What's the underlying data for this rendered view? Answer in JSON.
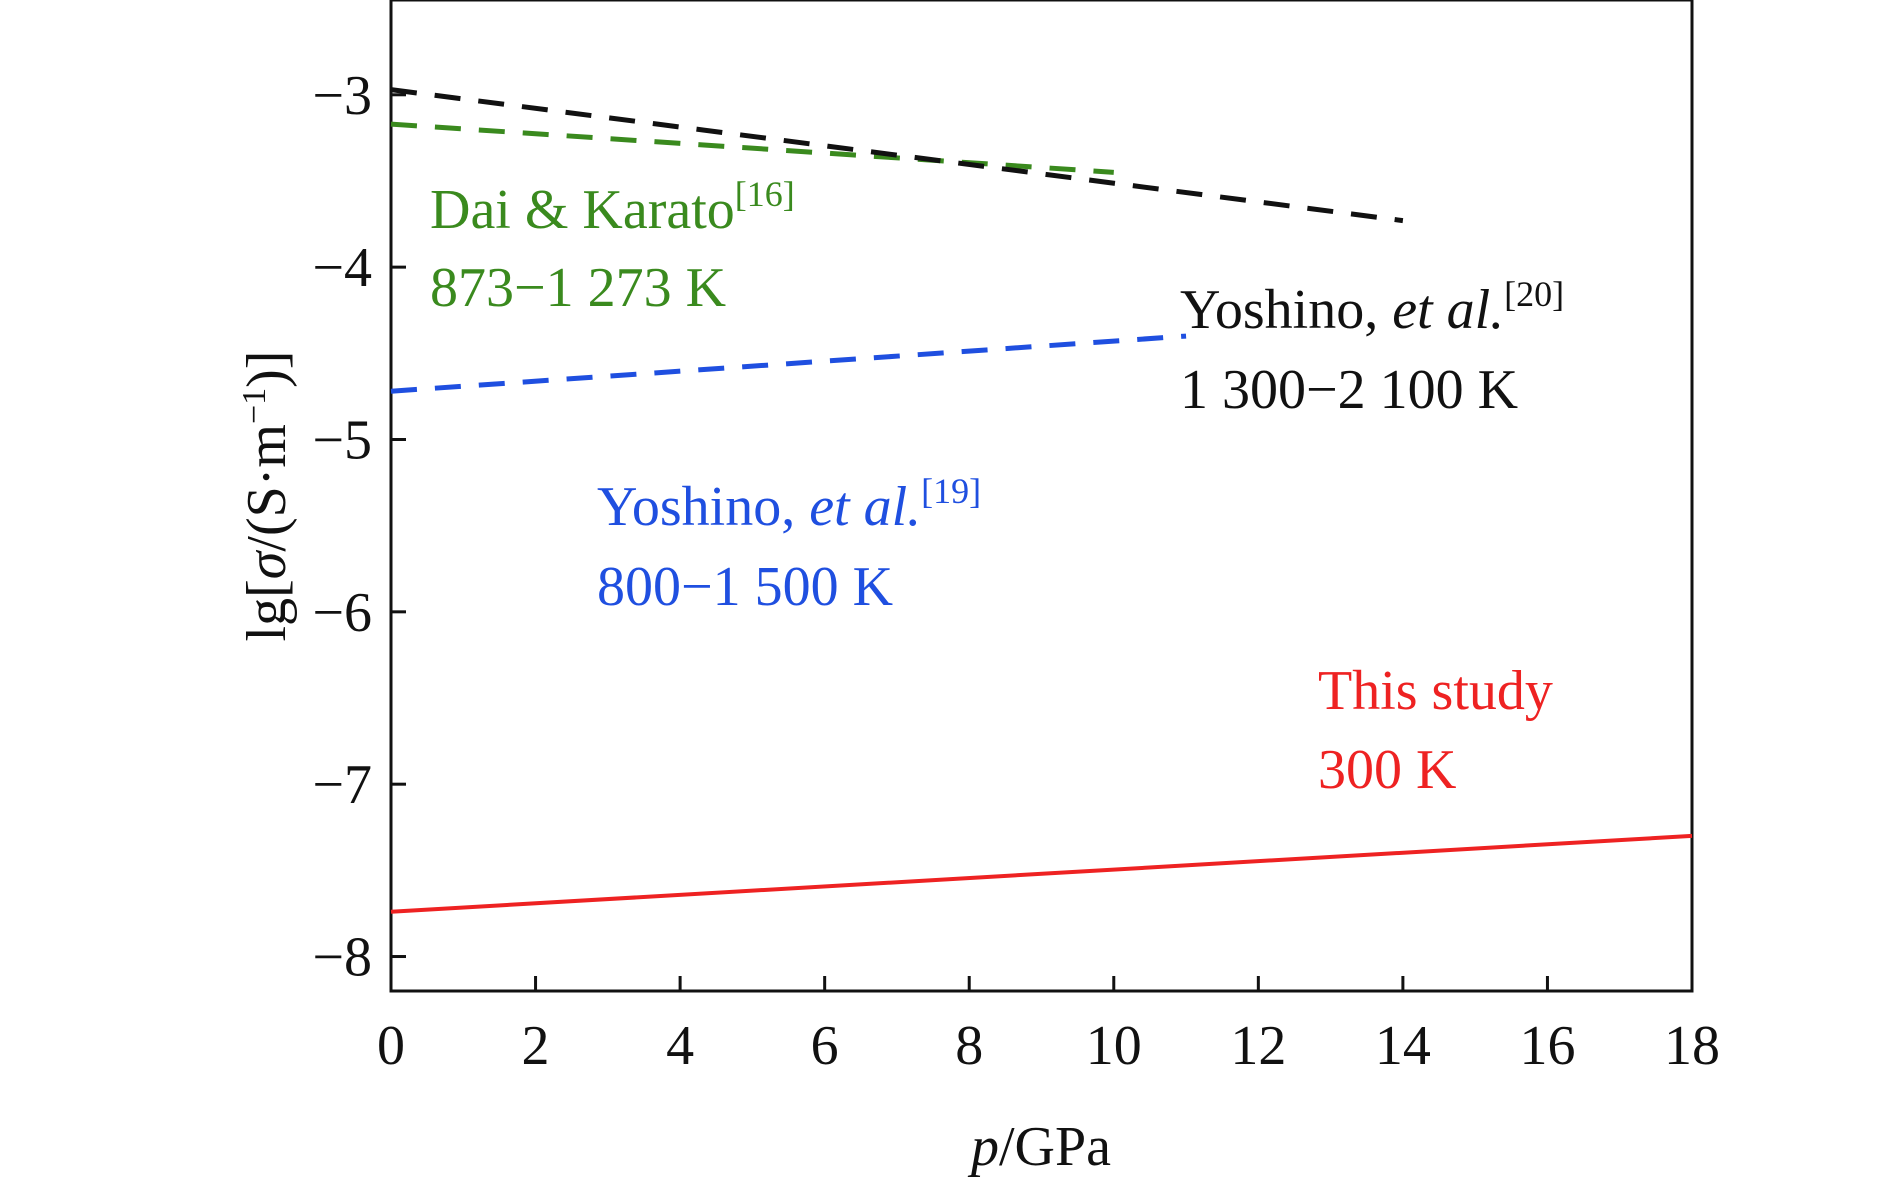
{
  "chart_data": {
    "type": "line",
    "xlabel": {
      "italic": "p",
      "rest": "/GPa"
    },
    "ylabel": {
      "pre": "lg[",
      "italic": "σ",
      "mid": "/(S·m",
      "sup": "−1",
      "post": ")]"
    },
    "xlim": [
      0,
      18
    ],
    "ylim": [
      -8.2,
      -2.45
    ],
    "xticks": [
      0,
      2,
      4,
      6,
      8,
      10,
      12,
      14,
      16,
      18
    ],
    "yticks": [
      -8,
      -7,
      -6,
      -5,
      -4,
      -3
    ],
    "ytick_labels": [
      "−8",
      "−7",
      "−6",
      "−5",
      "−4",
      "−3"
    ],
    "grid": false,
    "series": [
      {
        "key": "dai",
        "color": "#3a8a1e",
        "dash": "dashed",
        "x": [
          0,
          10
        ],
        "y": [
          -3.17,
          -3.45
        ]
      },
      {
        "key": "yoshino20",
        "color": "#111111",
        "dash": "dashed",
        "x": [
          0,
          14
        ],
        "y": [
          -2.97,
          -3.73
        ]
      },
      {
        "key": "yoshino19",
        "color": "#1f4fe0",
        "dash": "dashed",
        "x": [
          0,
          11
        ],
        "y": [
          -4.72,
          -4.4
        ]
      },
      {
        "key": "this",
        "color": "#ee2222",
        "dash": "solid",
        "x": [
          0,
          18
        ],
        "y": [
          -7.74,
          -7.3
        ]
      }
    ],
    "annotations": [
      {
        "key": "dai",
        "color": "#3a8a1e",
        "line1": {
          "text": "Dai & Karato",
          "sup": "[16]"
        },
        "line2": "873−1 273 K"
      },
      {
        "key": "yoshino20",
        "color": "#111111",
        "line1": {
          "text": "Yoshino, ",
          "italic": "et al.",
          "sup": "[20]"
        },
        "line2": "1 300−2 100 K"
      },
      {
        "key": "yoshino19",
        "color": "#1f4fe0",
        "line1": {
          "text": "Yoshino, ",
          "italic": "et al.",
          "sup": "[19]"
        },
        "line2": "800−1 500 K"
      },
      {
        "key": "this",
        "color": "#ee2222",
        "line1": {
          "text": "This study"
        },
        "line2": "300 K"
      }
    ]
  }
}
